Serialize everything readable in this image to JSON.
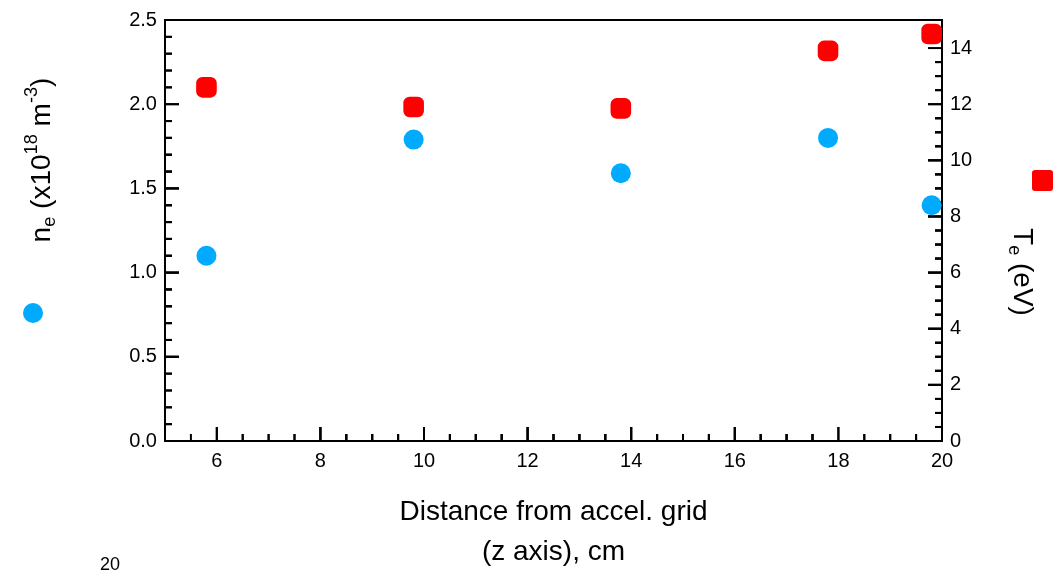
{
  "chart_data": {
    "type": "scatter",
    "xlabel": "Distance from accel. grid\n(z axis), cm",
    "ylabel": "n$_{e}$ (x10$^{18}$ m$^{-3}$)",
    "y2label": "T$_{e}$ (eV)",
    "x": [
      5.8,
      9.8,
      13.8,
      17.8,
      19.8
    ],
    "series": [
      {
        "color": "#00aaff",
        "marker": "circle",
        "values": [
          1.1,
          1.79,
          1.59,
          1.8,
          1.4
        ]
      },
      {
        "color": "#ff0000",
        "marker": "square",
        "axis": "y2",
        "values": [
          12.6,
          11.9,
          11.85,
          13.9,
          14.5
        ]
      }
    ],
    "xlim": [
      5,
      20
    ],
    "xticks": [
      6,
      8,
      10,
      12,
      14,
      16,
      18,
      20
    ],
    "ylim": [
      0,
      2.5
    ],
    "yticks": [
      {
        "value": 0,
        "label": "0.0"
      },
      0.5,
      {
        "value": 1,
        "label": "1.0"
      },
      1.5,
      {
        "value": 2,
        "label": "2.0"
      },
      2.5
    ],
    "y2lim": [
      0,
      15
    ],
    "y2ticks": [
      0,
      2,
      4,
      6,
      8,
      10,
      12,
      14
    ],
    "annotations": [
      "20"
    ],
    "grid": false,
    "legend": false
  }
}
